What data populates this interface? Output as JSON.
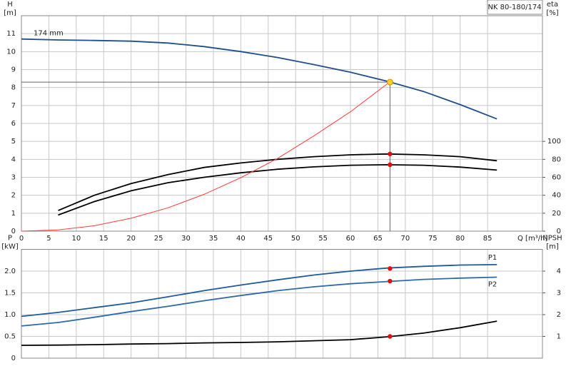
{
  "chart_data": [
    {
      "type": "line",
      "title": "NK 80-180/174",
      "ylabel": [
        "H",
        "[m]"
      ],
      "y2label": [
        "eta",
        "[%]"
      ],
      "xlabel": "Q [m³/h]",
      "xlim": [
        0,
        95
      ],
      "xticks": [
        0,
        5,
        10,
        15,
        20,
        25,
        30,
        35,
        40,
        45,
        50,
        55,
        60,
        65,
        70,
        75,
        80,
        85
      ],
      "ylim": [
        0,
        12
      ],
      "yticks": [
        0,
        1,
        2,
        3,
        4,
        5,
        6,
        7,
        8,
        9,
        10,
        11
      ],
      "y2lim": [
        0,
        240
      ],
      "y2ticks": [
        0,
        20,
        40,
        60,
        80,
        100
      ],
      "grid": true,
      "x": [
        0,
        6.7,
        13.3,
        20,
        26.7,
        33.3,
        40,
        46.7,
        53.3,
        60,
        66.7,
        73.3,
        80,
        86.7
      ],
      "series": [
        {
          "name": "174 mm",
          "color": "#1f4e8c",
          "values": [
            10.7,
            10.65,
            10.62,
            10.58,
            10.48,
            10.28,
            10.0,
            9.67,
            9.28,
            8.85,
            8.35,
            7.78,
            7.05,
            6.25
          ]
        },
        {
          "color": "#000000",
          "axis": "y2",
          "values": [
            null,
            23,
            40,
            53,
            63,
            71,
            76,
            80,
            83,
            85,
            86,
            85,
            83,
            78.4
          ]
        },
        {
          "color": "#000000",
          "axis": "y2",
          "values": [
            null,
            18,
            33,
            45,
            54,
            60,
            65,
            69,
            71.6,
            73.4,
            74,
            73.4,
            71.4,
            68
          ]
        },
        {
          "color": "#ff3b3b",
          "values": [
            0,
            0.07,
            0.3,
            0.72,
            1.3,
            2.05,
            2.98,
            4.05,
            5.3,
            6.65,
            8.2,
            null,
            null,
            null
          ]
        }
      ],
      "points": [
        {
          "x": 67.2,
          "y": 8.3,
          "color": "#ffd21f"
        },
        {
          "x": 67.2,
          "y": 86,
          "axis": "y2",
          "color": "#e01010"
        },
        {
          "x": 67.2,
          "y": 74,
          "axis": "y2",
          "color": "#e01010"
        }
      ]
    },
    {
      "type": "line",
      "ylabel": [
        "P",
        "[kW]"
      ],
      "y2label": [
        "NPSH",
        "[m]"
      ],
      "xlim": [
        0,
        95
      ],
      "ylim": [
        0,
        2.5
      ],
      "yticks": [
        0,
        0.5,
        {
          "value": 1,
          "label": "1.0"
        },
        1.5,
        {
          "value": 2,
          "label": "2.0"
        }
      ],
      "y2lim": [
        0,
        5
      ],
      "y2ticks": [
        1,
        2,
        3,
        4
      ],
      "grid": true,
      "x": [
        0,
        6.7,
        13.3,
        20,
        26.7,
        33.3,
        40,
        46.7,
        53.3,
        60,
        66.7,
        73.3,
        80,
        86.7
      ],
      "series": [
        {
          "name": "P1",
          "color": "#1f5a9a",
          "values": [
            0.96,
            1.05,
            1.16,
            1.27,
            1.41,
            1.55,
            1.68,
            1.8,
            1.91,
            2.0,
            2.07,
            2.11,
            2.14,
            2.15
          ]
        },
        {
          "name": "P2",
          "color": "#2e6aaa",
          "values": [
            0.74,
            0.82,
            0.94,
            1.07,
            1.19,
            1.32,
            1.44,
            1.55,
            1.64,
            1.71,
            1.76,
            1.81,
            1.84,
            1.86
          ]
        },
        {
          "color": "#000000",
          "axis": "y2",
          "values": [
            0.59,
            0.6,
            0.62,
            0.65,
            0.67,
            0.7,
            0.72,
            0.75,
            0.8,
            0.85,
            0.98,
            1.15,
            1.4,
            1.7
          ]
        }
      ],
      "points": [
        {
          "x": 67.2,
          "y": 2.06,
          "color": "#e01010"
        },
        {
          "x": 67.2,
          "y": 1.77,
          "color": "#e01010"
        },
        {
          "x": 67.2,
          "y": 1.0,
          "axis": "y2",
          "color": "#e01010"
        }
      ]
    }
  ]
}
